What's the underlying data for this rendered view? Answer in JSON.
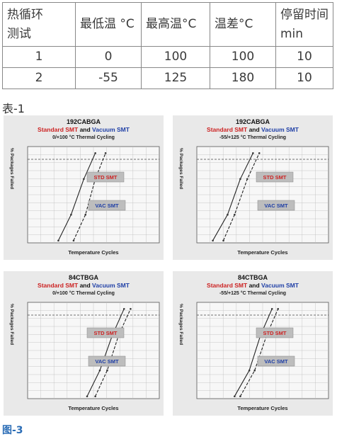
{
  "table": {
    "headers": [
      "热循环测试",
      "最低温 °C",
      "最高温°C",
      "温差°C",
      "停留时间min"
    ],
    "header_lines": [
      [
        "热循环",
        "测试"
      ],
      [
        "最低温 °C"
      ],
      [
        "最高温°C"
      ],
      [
        "温差°C"
      ],
      [
        "停留时间",
        "min"
      ]
    ],
    "rows": [
      [
        "1",
        "0",
        "100",
        "100",
        "10"
      ],
      [
        "2",
        "-55",
        "125",
        "180",
        "10"
      ]
    ]
  },
  "caption_table": "表-1",
  "caption_figure": "图-3",
  "colors": {
    "std": "#cc2222",
    "vac": "#1f3fa6",
    "label_box": "#bdbdbd",
    "caption_fig": "#2b6db6"
  },
  "charts": [
    {
      "title": "192CABGA",
      "subtitle_std": "Standard SMT",
      "subtitle_and": " and ",
      "subtitle_vac": "Vacuum SMT",
      "condition": "0/+100 °C Thermal Cycling",
      "ylabel": "% Packages Failed",
      "xlabel": "Temperature Cycles",
      "std_label": "STD SMT",
      "vac_label": "VAC SMT",
      "chart_data": {
        "type": "line",
        "title": "192CABGA",
        "xlabel": "Temperature Cycles",
        "ylabel": "% Packages Failed",
        "x_scale": "log",
        "series": [
          {
            "name": "STD SMT",
            "points": [
              [
                800,
                1
              ],
              [
                1200,
                30
              ],
              [
                1800,
                70
              ],
              [
                2600,
                99
              ]
            ]
          },
          {
            "name": "VAC SMT",
            "points": [
              [
                1300,
                1
              ],
              [
                1900,
                30
              ],
              [
                2600,
                70
              ],
              [
                3600,
                99
              ]
            ]
          }
        ]
      }
    },
    {
      "title": "192CABGA",
      "subtitle_std": "Standard SMT",
      "subtitle_and": " and ",
      "subtitle_vac": "Vacuum SMT",
      "condition": "-55/+125 °C Thermal Cycling",
      "ylabel": "% Packages Failed",
      "xlabel": "Temperature Cycles",
      "std_label": "STD SMT",
      "vac_label": "VAC SMT",
      "chart_data": {
        "type": "line",
        "title": "192CABGA",
        "xlabel": "Temperature Cycles",
        "ylabel": "% Packages Failed",
        "x_scale": "log",
        "series": [
          {
            "name": "STD SMT",
            "points": [
              [
                500,
                1
              ],
              [
                800,
                30
              ],
              [
                1200,
                70
              ],
              [
                1800,
                99
              ]
            ]
          },
          {
            "name": "VAC SMT",
            "points": [
              [
                700,
                1
              ],
              [
                1000,
                30
              ],
              [
                1500,
                70
              ],
              [
                2200,
                99
              ]
            ]
          }
        ]
      }
    },
    {
      "title": "84CTBGA",
      "subtitle_std": "Standard SMT",
      "subtitle_and": " and ",
      "subtitle_vac": "Vacuum SMT",
      "condition": "0/+100 °C Thermal Cycling",
      "ylabel": "% Packages Failed",
      "xlabel": "Temperature Cycles",
      "std_label": "STD SMT",
      "vac_label": "VAC SMT",
      "chart_data": {
        "type": "line",
        "title": "84CTBGA",
        "xlabel": "Temperature Cycles",
        "ylabel": "% Packages Failed",
        "x_scale": "log",
        "series": [
          {
            "name": "STD SMT",
            "points": [
              [
                2000,
                1
              ],
              [
                3000,
                30
              ],
              [
                4500,
                70
              ],
              [
                6500,
                99
              ]
            ]
          },
          {
            "name": "VAC SMT",
            "points": [
              [
                2600,
                1
              ],
              [
                3800,
                30
              ],
              [
                5500,
                70
              ],
              [
                8000,
                99
              ]
            ]
          }
        ]
      }
    },
    {
      "title": "84CTBGA",
      "subtitle_std": "Standard SMT",
      "subtitle_and": " and ",
      "subtitle_vac": "Vacuum SMT",
      "condition": "-55/+125 °C Thermal Cycling",
      "ylabel": "% Packages Failed",
      "xlabel": "Temperature Cycles",
      "std_label": "STD SMT",
      "vac_label": "VAC SMT",
      "chart_data": {
        "type": "line",
        "title": "84CTBGA",
        "xlabel": "Temperature Cycles",
        "ylabel": "% Packages Failed",
        "x_scale": "log",
        "series": [
          {
            "name": "STD SMT",
            "points": [
              [
                1000,
                1
              ],
              [
                1600,
                30
              ],
              [
                2300,
                70
              ],
              [
                3300,
                99
              ]
            ]
          },
          {
            "name": "VAC SMT",
            "points": [
              [
                1200,
                1
              ],
              [
                1900,
                30
              ],
              [
                2800,
                70
              ],
              [
                4000,
                99
              ]
            ]
          }
        ]
      }
    }
  ]
}
